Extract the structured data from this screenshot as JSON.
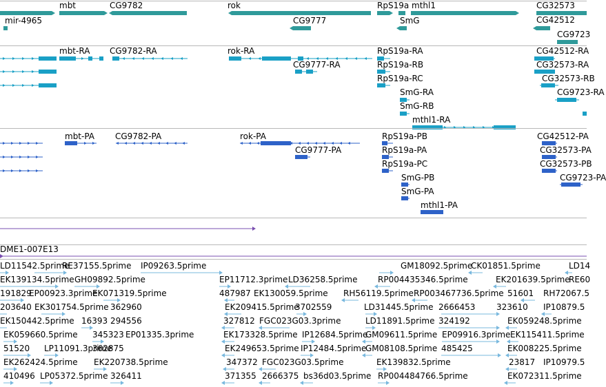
{
  "colors": {
    "gene": "#2f9a9a",
    "transcript": "#1aa0c6",
    "protein": "#2e62c8",
    "scaffold": "#7a4fb0",
    "est": "#79b8de",
    "separator": "#b8b8b8"
  },
  "tracks": {
    "gene_track": {
      "labels": [
        "mbt",
        "CG9782",
        "rok",
        "RpS19a",
        "mthl1",
        "CG32573",
        "mir-4965",
        "CG9777",
        "SmG",
        "CG42512",
        "CG9723"
      ]
    },
    "transcript_track": {
      "labels": [
        "mbt-RA",
        "CG9782-RA",
        "rok-RA",
        "RpS19a-RA",
        "CG42512-RA",
        "CG9777-RA",
        "RpS19a-RB",
        "CG32573-RA",
        "RpS19a-RC",
        "CG32573-RB",
        "SmG-RA",
        "CG9723-RA",
        "SmG-RB",
        "mthl1-RA"
      ]
    },
    "protein_track": {
      "labels": [
        "mbt-PA",
        "CG9782-PA",
        "rok-PA",
        "RpS19a-PB",
        "CG42512-PA",
        "CG9777-PA",
        "RpS19a-PA",
        "CG32573-PA",
        "RpS19a-PC",
        "CG32573-PB",
        "SmG-PB",
        "CG9723-PA",
        "SmG-PA",
        "mthl1-PA"
      ]
    },
    "scaffold_track": {
      "label": "DME1-007E13"
    },
    "est_track": {
      "labels": [
        "LD11542.5prime",
        "RE37155.5prime",
        "IP09263.5prime",
        "GM18092.5prime",
        "CK01851.5prime",
        "LD14",
        "EK139134.5prime",
        "GH09892.5prime",
        "EP11712.3prime",
        "LD36258.5prime",
        "RP004435346.5prime",
        "EK201639.5prime",
        "RE60",
        "191829",
        "EP00923.3prime",
        "EK071319.5prime",
        "487987",
        "EK130059.5prime",
        "RH56119.5prime",
        "RP003467736.5prime",
        "51601",
        "RH72067.5",
        "203640",
        "EK301754.5prime",
        "362960",
        "EK209415.5prime",
        "3702559",
        "LD31445.5prime",
        "2666453",
        "323610",
        "IP10879.5",
        "EK150442.5prime",
        "16393",
        "294556",
        "327812",
        "FGC023G03.3prime",
        "LD11891.5prime",
        "324192",
        "EK059248.5prime",
        "EK059660.5prime",
        "345323",
        "EP01335.3prime",
        "EK173328.5prime",
        "IP12684.5prime",
        "GM09611.5prime",
        "EP09916.3prime",
        "EK115411.5prime",
        "51520",
        "LP11091.3prime",
        "362875",
        "EK249653.5prime",
        "IP12484.5prime",
        "GM08108.5prime",
        "485425",
        "EK008225.5prime",
        "EK262424.5prime",
        "EK220738.5prime",
        "347372",
        "FGC023G03.5prime",
        "EK139832.5prime",
        "23817",
        "IP10979.5",
        "410496",
        "LP05372.5prime",
        "326411",
        "371355",
        "2666375",
        "bs36d03.5prime",
        "RP004484766.5prime",
        "EK072311.5prime"
      ]
    }
  }
}
